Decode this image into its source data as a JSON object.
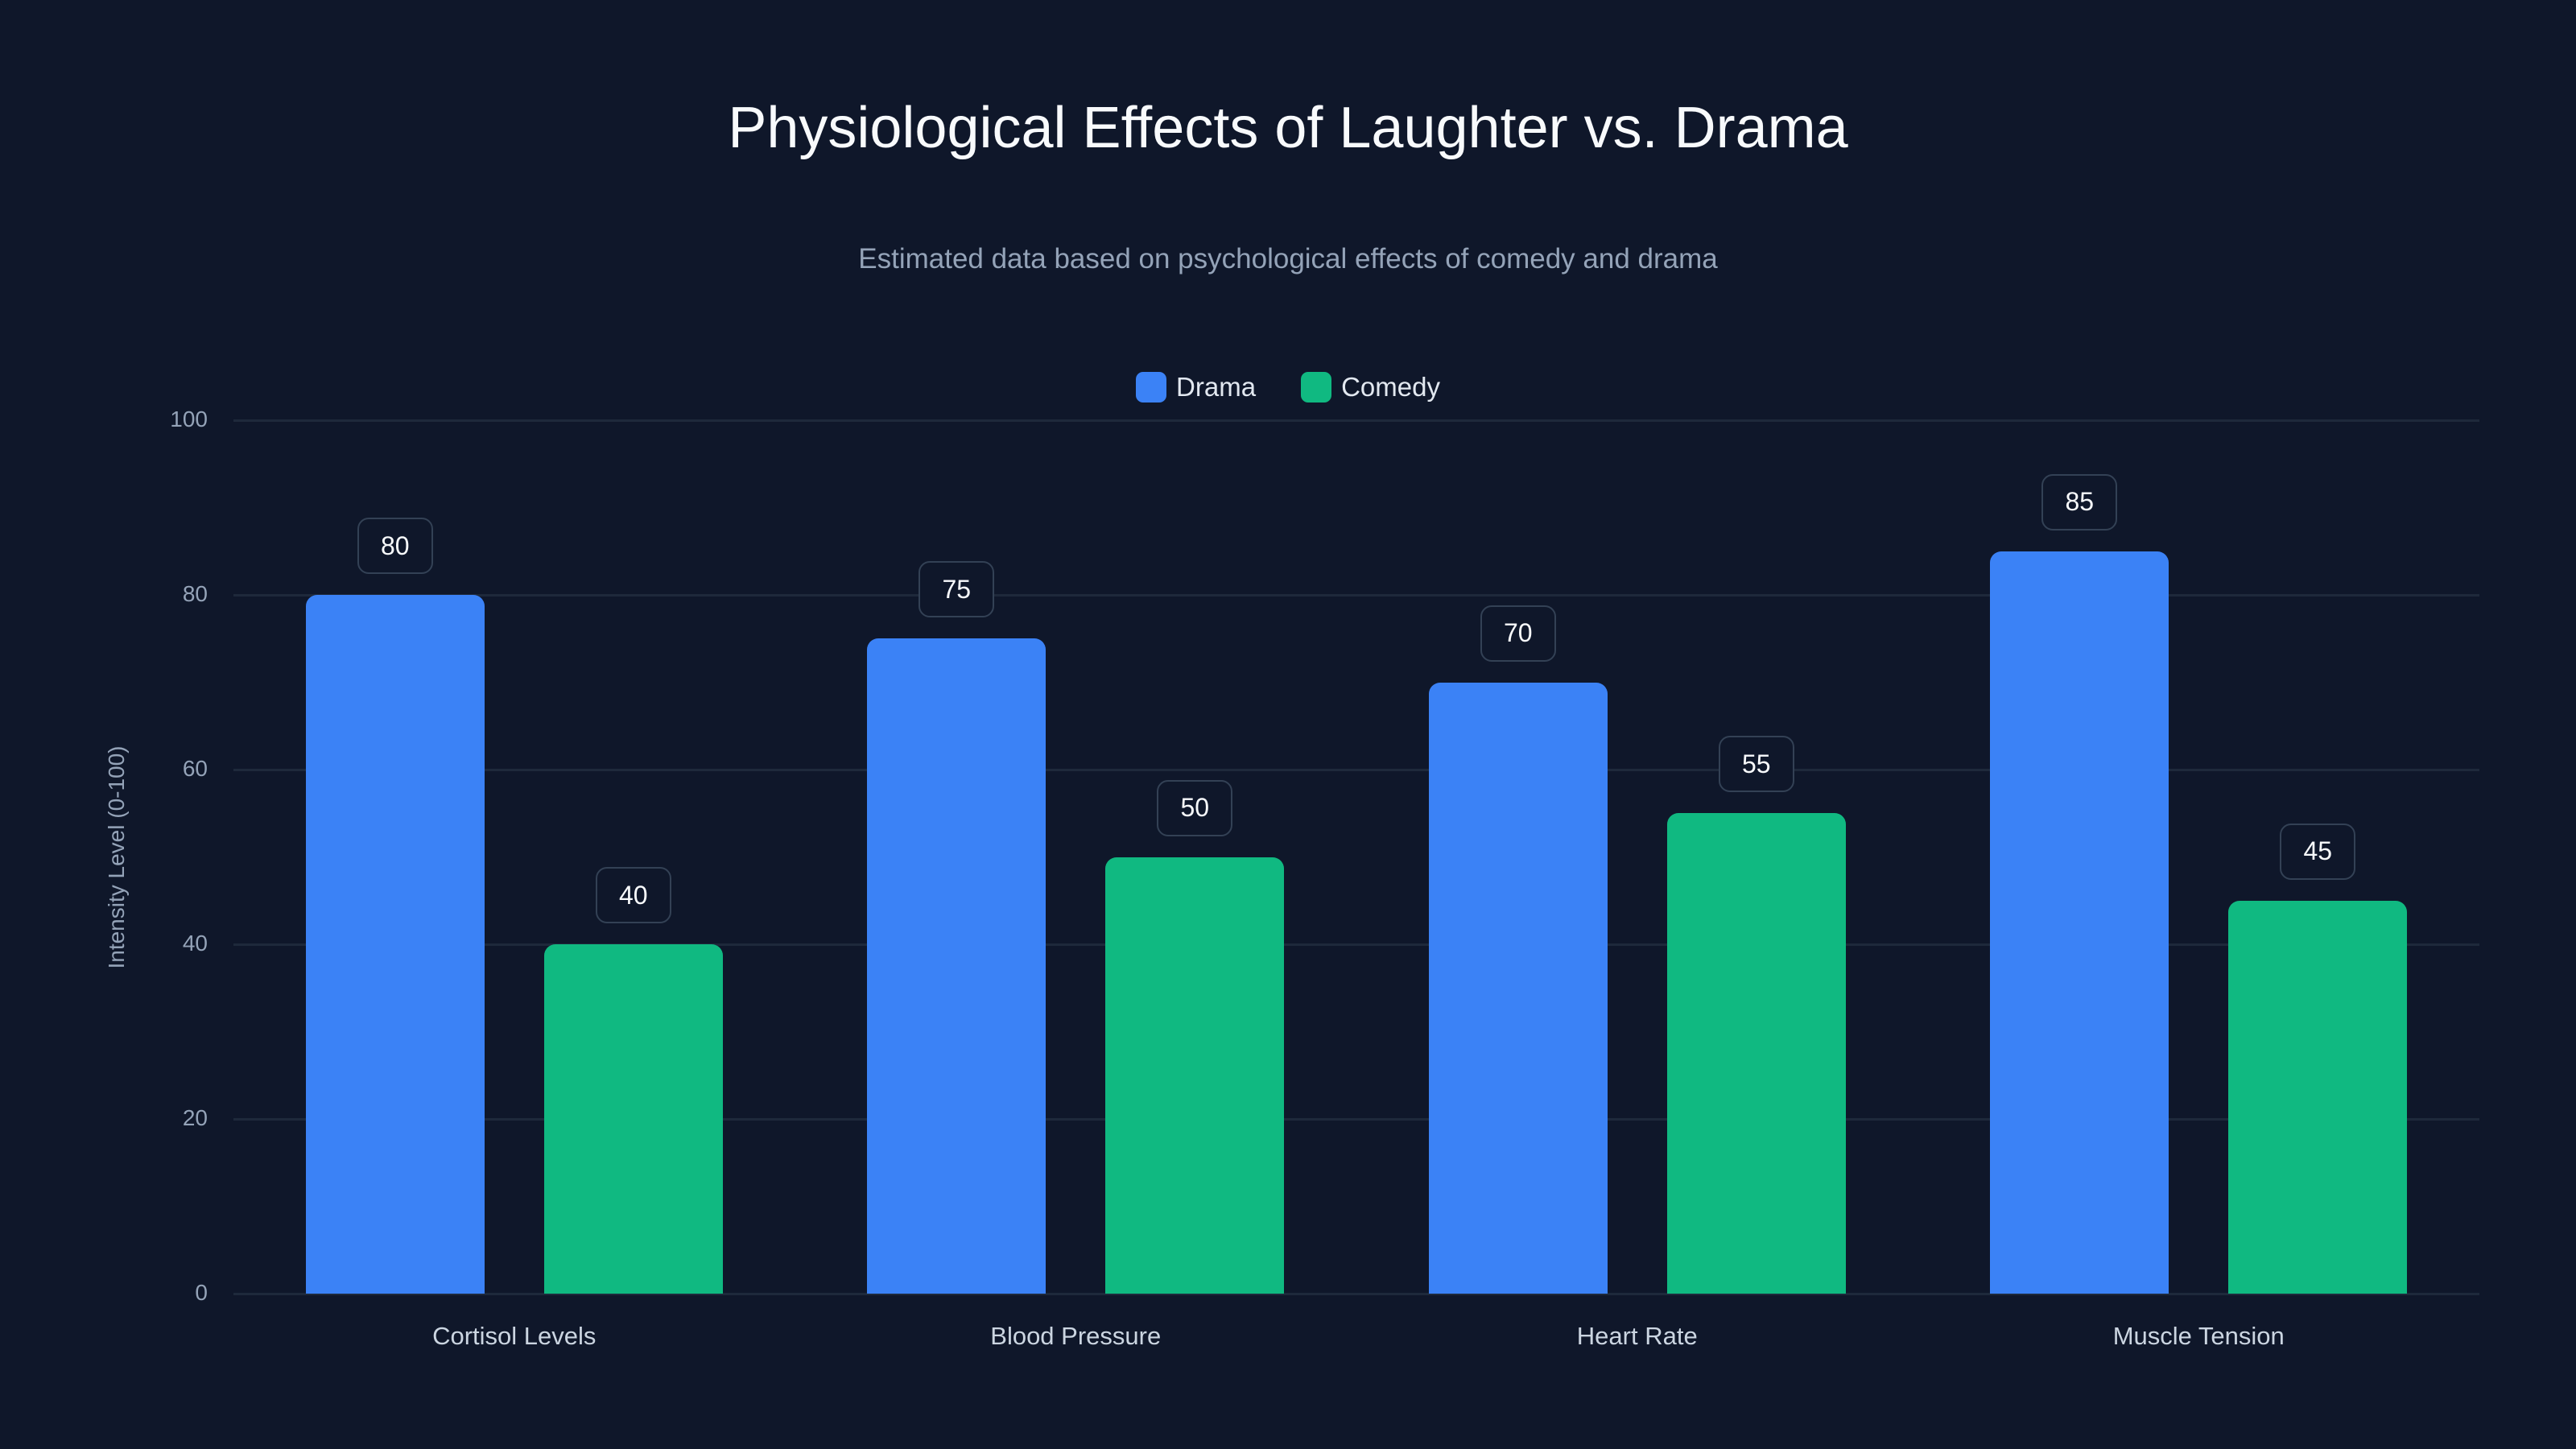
{
  "chart_data": {
    "type": "bar",
    "title": "Physiological Effects of Laughter vs. Drama",
    "subtitle": "Estimated data based on psychological effects of comedy and drama",
    "xlabel": "",
    "ylabel": "Intensity Level (0-100)",
    "ylim": [
      0,
      100
    ],
    "yticks": [
      "0",
      "20",
      "40",
      "60",
      "80",
      "100"
    ],
    "grid": true,
    "legend_position": "top-center",
    "categories": [
      "Cortisol Levels",
      "Blood Pressure",
      "Heart Rate",
      "Muscle Tension"
    ],
    "series": [
      {
        "name": "Drama",
        "color": "#3b82f6",
        "values": [
          80,
          75,
          70,
          85
        ]
      },
      {
        "name": "Comedy",
        "color": "#10b981",
        "values": [
          40,
          50,
          55,
          45
        ]
      }
    ]
  }
}
